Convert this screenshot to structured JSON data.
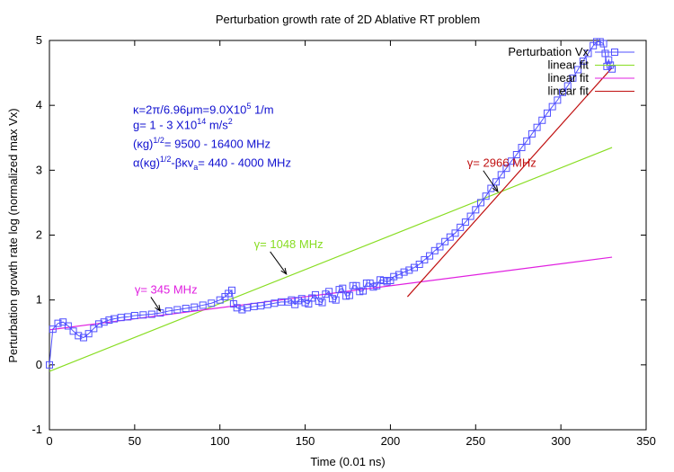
{
  "chart_data": {
    "type": "line",
    "title": "Perturbation growth rate of 2D Ablative RT problem",
    "xlabel": "Time (0.01 ns)",
    "ylabel": "Perturbation growth rate log (normalized max Vx)",
    "xlim": [
      0,
      350
    ],
    "ylim": [
      -1,
      5
    ],
    "xticks": [
      0,
      50,
      100,
      150,
      200,
      250,
      300,
      350
    ],
    "yticks": [
      -1,
      0,
      1,
      2,
      3,
      4,
      5
    ],
    "legend": {
      "placement": "top-right",
      "entries": [
        {
          "label": "Perturbation Vx",
          "color": "#5050ff",
          "marker": "square-line"
        },
        {
          "label": "linear fit",
          "color": "#88dd22",
          "marker": "line"
        },
        {
          "label": "linear fit",
          "color": "#e020e0",
          "marker": "line"
        },
        {
          "label": "linear fit",
          "color": "#c01010",
          "marker": "line"
        }
      ]
    },
    "series": [
      {
        "name": "Perturbation Vx",
        "color": "#5050ff",
        "x": [
          0,
          2,
          5,
          8,
          11,
          14,
          17,
          20,
          23,
          26,
          29,
          32,
          35,
          38,
          42,
          46,
          50,
          55,
          60,
          65,
          70,
          75,
          80,
          85,
          90,
          95,
          100,
          103,
          105,
          107,
          108,
          110,
          113,
          116,
          120,
          124,
          128,
          132,
          136,
          140,
          142,
          144,
          146,
          148,
          150,
          152,
          154,
          156,
          158,
          160,
          162,
          164,
          166,
          168,
          170,
          172,
          174,
          176,
          178,
          180,
          182,
          184,
          186,
          188,
          190,
          192,
          194,
          196,
          198,
          200,
          202,
          205,
          208,
          211,
          214,
          217,
          220,
          223,
          226,
          229,
          232,
          235,
          238,
          241,
          244,
          247,
          250,
          253,
          256,
          259,
          262,
          265,
          268,
          271,
          274,
          277,
          280,
          283,
          286,
          289,
          292,
          295,
          298,
          301,
          304,
          307,
          310,
          313,
          316,
          319,
          321,
          323,
          325,
          326,
          327,
          328,
          329,
          330
        ],
        "values": [
          0.0,
          0.55,
          0.64,
          0.66,
          0.6,
          0.52,
          0.45,
          0.42,
          0.48,
          0.56,
          0.63,
          0.66,
          0.69,
          0.71,
          0.73,
          0.74,
          0.76,
          0.77,
          0.78,
          0.8,
          0.83,
          0.85,
          0.87,
          0.89,
          0.92,
          0.95,
          1.0,
          1.05,
          1.1,
          1.15,
          0.94,
          0.88,
          0.85,
          0.88,
          0.9,
          0.91,
          0.93,
          0.95,
          0.97,
          0.97,
          1.0,
          0.93,
          0.99,
          1.02,
          0.96,
          0.94,
          1.03,
          1.08,
          0.98,
          0.96,
          1.09,
          1.13,
          1.02,
          1.0,
          1.16,
          1.18,
          1.06,
          1.07,
          1.22,
          1.22,
          1.13,
          1.14,
          1.26,
          1.26,
          1.2,
          1.22,
          1.31,
          1.3,
          1.28,
          1.3,
          1.36,
          1.39,
          1.43,
          1.46,
          1.5,
          1.55,
          1.62,
          1.68,
          1.76,
          1.82,
          1.9,
          1.97,
          2.03,
          2.12,
          2.2,
          2.29,
          2.39,
          2.5,
          2.6,
          2.72,
          2.82,
          2.93,
          3.03,
          3.14,
          3.24,
          3.35,
          3.45,
          3.56,
          3.66,
          3.77,
          3.88,
          3.98,
          4.08,
          4.2,
          4.3,
          4.42,
          4.55,
          4.68,
          4.8,
          4.92,
          4.98,
          4.98,
          4.95,
          4.8,
          4.6,
          4.7,
          4.62,
          4.56
        ]
      },
      {
        "name": "linear fit",
        "color": "#88dd22",
        "x": [
          0,
          330
        ],
        "values": [
          -0.1,
          3.35
        ]
      },
      {
        "name": "linear fit",
        "color": "#e020e0",
        "x": [
          0,
          330
        ],
        "values": [
          0.54,
          1.66
        ]
      },
      {
        "name": "linear fit",
        "color": "#c01010",
        "x": [
          210,
          330
        ],
        "values": [
          1.05,
          4.58
        ]
      }
    ],
    "annotations": [
      {
        "text": "γ= 2966 MHz",
        "color": "#c01010",
        "x": 245,
        "y": 3.05,
        "arrow_to": [
          263,
          2.67
        ]
      },
      {
        "text": "γ= 1048 MHz",
        "color": "#88dd22",
        "x": 120,
        "y": 1.8,
        "arrow_to": [
          139,
          1.4
        ]
      },
      {
        "text": "γ= 345 MHz",
        "color": "#e020e0",
        "x": 50,
        "y": 1.1,
        "arrow_to": [
          65,
          0.83
        ]
      }
    ]
  },
  "physics_text": {
    "line1_prefix": "κ=2π/6.96μm=9.0X10",
    "line1_exp": "5",
    "line1_suffix": " 1/m",
    "line2_prefix": "g= 1 - 3 X10",
    "line2_exp": "14",
    "line2_mid": " m/s",
    "line2_exp2": "2",
    "line3_prefix": "(κg)",
    "line3_exp": "1/2",
    "line3_suffix": "= 9500 - 16400  MHz",
    "line4_prefix": "α(κg)",
    "line4_exp": "1/2",
    "line4_mid": "-βκv",
    "line4_sub": "a",
    "line4_suffix": "= 440 - 4000  MHz"
  }
}
